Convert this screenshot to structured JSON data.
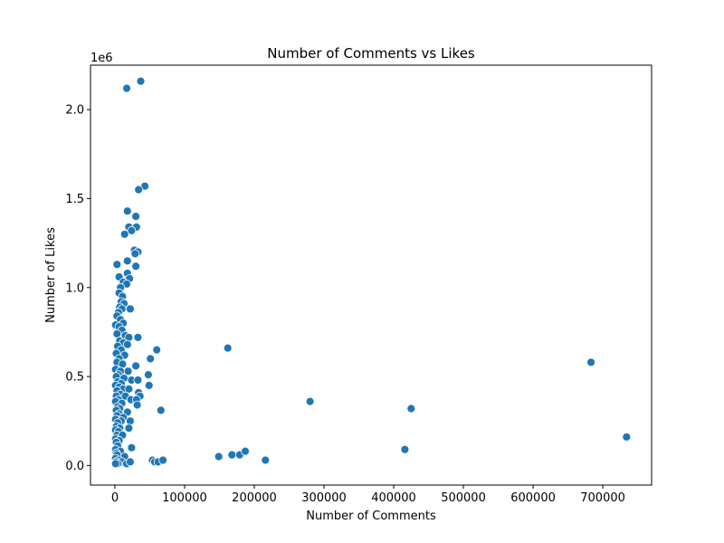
{
  "chart_data": {
    "type": "scatter",
    "title": "Number of Comments vs Likes",
    "xlabel": "Number of Comments",
    "ylabel": "Number of Likes",
    "y_multiplier_label": "1e6",
    "xlim": [
      -35000,
      770000
    ],
    "ylim": [
      -0.11,
      2.25
    ],
    "xticks": [
      0,
      100000,
      200000,
      300000,
      400000,
      500000,
      600000,
      700000
    ],
    "xtick_labels": [
      "0",
      "100000",
      "200000",
      "300000",
      "400000",
      "500000",
      "600000",
      "700000"
    ],
    "yticks": [
      0.0,
      0.5,
      1.0,
      1.5,
      2.0
    ],
    "ytick_labels": [
      "0.0",
      "0.5",
      "1.0",
      "1.5",
      "2.0"
    ],
    "grid": false,
    "marker_color": "#1f77b4",
    "points": [
      [
        17000,
        2.12
      ],
      [
        37000,
        2.16
      ],
      [
        43000,
        1.57
      ],
      [
        34000,
        1.55
      ],
      [
        18000,
        1.43
      ],
      [
        30000,
        1.4
      ],
      [
        20000,
        1.34
      ],
      [
        31000,
        1.34
      ],
      [
        24000,
        1.32
      ],
      [
        14000,
        1.3
      ],
      [
        28000,
        1.21
      ],
      [
        33000,
        1.2
      ],
      [
        29000,
        1.19
      ],
      [
        18000,
        1.15
      ],
      [
        30000,
        1.12
      ],
      [
        3000,
        1.13
      ],
      [
        18000,
        1.08
      ],
      [
        6000,
        1.06
      ],
      [
        21000,
        1.05
      ],
      [
        12000,
        1.03
      ],
      [
        17000,
        1.02
      ],
      [
        8000,
        1.0
      ],
      [
        6000,
        0.97
      ],
      [
        11000,
        0.95
      ],
      [
        9000,
        0.92
      ],
      [
        13000,
        0.91
      ],
      [
        7000,
        0.89
      ],
      [
        10000,
        0.88
      ],
      [
        22000,
        0.88
      ],
      [
        5000,
        0.86
      ],
      [
        3000,
        0.84
      ],
      [
        8000,
        0.82
      ],
      [
        12000,
        0.8
      ],
      [
        1000,
        0.79
      ],
      [
        6000,
        0.78
      ],
      [
        10000,
        0.76
      ],
      [
        3000,
        0.74
      ],
      [
        15000,
        0.73
      ],
      [
        20000,
        0.72
      ],
      [
        33000,
        0.72
      ],
      [
        7000,
        0.7
      ],
      [
        12000,
        0.69
      ],
      [
        18000,
        0.68
      ],
      [
        4000,
        0.67
      ],
      [
        9000,
        0.65
      ],
      [
        2000,
        0.63
      ],
      [
        14000,
        0.62
      ],
      [
        6000,
        0.6
      ],
      [
        51000,
        0.6
      ],
      [
        3000,
        0.58
      ],
      [
        11000,
        0.57
      ],
      [
        30000,
        0.56
      ],
      [
        1000,
        0.54
      ],
      [
        8000,
        0.53
      ],
      [
        19000,
        0.53
      ],
      [
        5000,
        0.51
      ],
      [
        48000,
        0.51
      ],
      [
        2000,
        0.5
      ],
      [
        13000,
        0.49
      ],
      [
        24000,
        0.48
      ],
      [
        33000,
        0.48
      ],
      [
        4000,
        0.47
      ],
      [
        9000,
        0.46
      ],
      [
        1000,
        0.45
      ],
      [
        49000,
        0.45
      ],
      [
        6000,
        0.44
      ],
      [
        12000,
        0.43
      ],
      [
        20000,
        0.43
      ],
      [
        3000,
        0.42
      ],
      [
        34000,
        0.41
      ],
      [
        8000,
        0.4
      ],
      [
        2000,
        0.39
      ],
      [
        15000,
        0.39
      ],
      [
        36000,
        0.39
      ],
      [
        5000,
        0.37
      ],
      [
        23000,
        0.37
      ],
      [
        31000,
        0.37
      ],
      [
        1000,
        0.36
      ],
      [
        10000,
        0.35
      ],
      [
        32000,
        0.34
      ],
      [
        4000,
        0.33
      ],
      [
        7000,
        0.32
      ],
      [
        2000,
        0.31
      ],
      [
        18000,
        0.3
      ],
      [
        6000,
        0.29
      ],
      [
        3000,
        0.28
      ],
      [
        12000,
        0.27
      ],
      [
        1000,
        0.26
      ],
      [
        9000,
        0.25
      ],
      [
        22000,
        0.25
      ],
      [
        4000,
        0.24
      ],
      [
        2000,
        0.22
      ],
      [
        7000,
        0.21
      ],
      [
        20000,
        0.21
      ],
      [
        1000,
        0.2
      ],
      [
        5000,
        0.19
      ],
      [
        3000,
        0.17
      ],
      [
        11000,
        0.17
      ],
      [
        1000,
        0.15
      ],
      [
        6000,
        0.14
      ],
      [
        2000,
        0.13
      ],
      [
        4000,
        0.11
      ],
      [
        24000,
        0.1
      ],
      [
        1000,
        0.09
      ],
      [
        8000,
        0.08
      ],
      [
        2000,
        0.07
      ],
      [
        3000,
        0.06
      ],
      [
        14000,
        0.05
      ],
      [
        1000,
        0.04
      ],
      [
        6000,
        0.03
      ],
      [
        2000,
        0.02
      ],
      [
        10000,
        0.02
      ],
      [
        4000,
        0.01
      ],
      [
        1000,
        0.01
      ],
      [
        17000,
        0.01
      ],
      [
        22000,
        0.02
      ],
      [
        60000,
        0.65
      ],
      [
        66000,
        0.31
      ],
      [
        54000,
        0.03
      ],
      [
        57000,
        0.02
      ],
      [
        62000,
        0.02
      ],
      [
        69000,
        0.03
      ],
      [
        149000,
        0.05
      ],
      [
        168000,
        0.06
      ],
      [
        179000,
        0.06
      ],
      [
        187000,
        0.08
      ],
      [
        216000,
        0.03
      ],
      [
        162000,
        0.66
      ],
      [
        280000,
        0.36
      ],
      [
        416000,
        0.09
      ],
      [
        425000,
        0.32
      ],
      [
        683000,
        0.58
      ],
      [
        734000,
        0.16
      ]
    ]
  }
}
